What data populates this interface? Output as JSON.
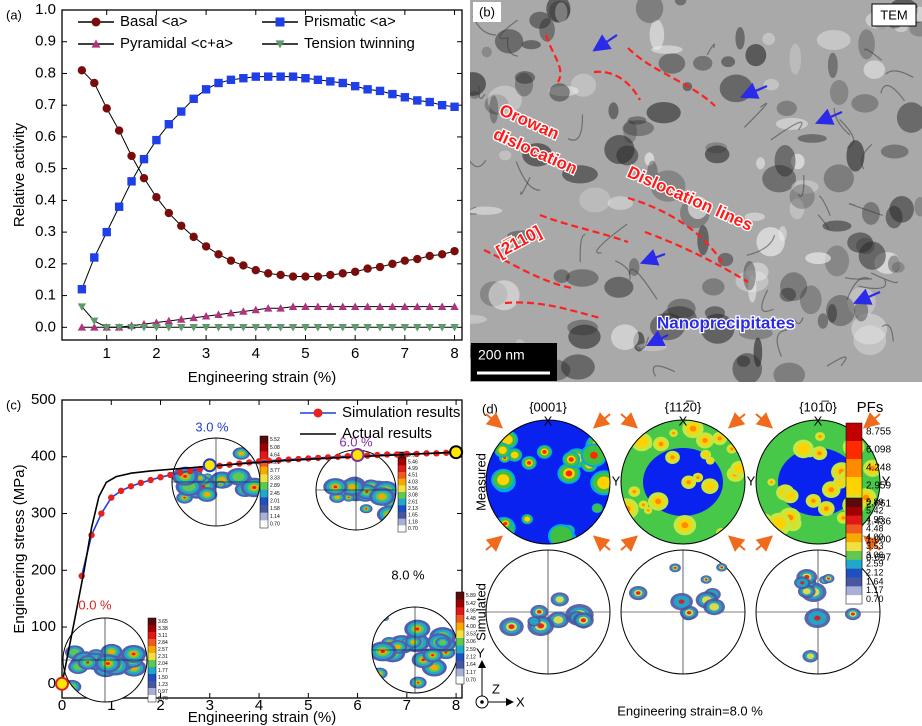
{
  "chart_data": [
    {
      "type": "line",
      "panel_label": "(a)",
      "x_label": "Engineering strain (%)",
      "y_label": "Relative activity",
      "x": [
        0.5,
        0.75,
        1,
        1.25,
        1.5,
        1.75,
        2,
        2.25,
        2.5,
        2.75,
        3,
        3.25,
        3.5,
        3.75,
        4,
        4.25,
        4.5,
        4.75,
        5,
        5.25,
        5.5,
        5.75,
        6,
        6.25,
        6.5,
        6.75,
        7,
        7.25,
        7.5,
        7.75,
        8
      ],
      "series": [
        {
          "name": "Basal <a>",
          "color": "#7a0c0c",
          "marker": "circle",
          "values": [
            0.81,
            0.77,
            0.69,
            0.62,
            0.54,
            0.47,
            0.41,
            0.36,
            0.32,
            0.285,
            0.255,
            0.23,
            0.21,
            0.195,
            0.18,
            0.17,
            0.165,
            0.16,
            0.16,
            0.16,
            0.165,
            0.17,
            0.175,
            0.185,
            0.19,
            0.2,
            0.21,
            0.215,
            0.225,
            0.23,
            0.24
          ]
        },
        {
          "name": "Prismatic <a>",
          "color": "#1f3fe8",
          "marker": "square",
          "values": [
            0.12,
            0.22,
            0.3,
            0.38,
            0.46,
            0.53,
            0.59,
            0.64,
            0.68,
            0.72,
            0.75,
            0.77,
            0.78,
            0.785,
            0.79,
            0.79,
            0.79,
            0.79,
            0.785,
            0.78,
            0.775,
            0.77,
            0.76,
            0.75,
            0.745,
            0.735,
            0.725,
            0.715,
            0.71,
            0.7,
            0.695
          ]
        },
        {
          "name": "Pyramidal <c+a>",
          "color": "#b0357f",
          "marker": "triangle-up",
          "values": [
            0,
            0,
            0,
            0,
            0.005,
            0.01,
            0.015,
            0.02,
            0.025,
            0.03,
            0.035,
            0.04,
            0.045,
            0.05,
            0.055,
            0.06,
            0.06,
            0.065,
            0.065,
            0.065,
            0.065,
            0.065,
            0.065,
            0.065,
            0.065,
            0.065,
            0.065,
            0.065,
            0.065,
            0.065,
            0.065
          ]
        },
        {
          "name": "Tension twinning",
          "color": "#5f9a6e",
          "marker": "triangle-down",
          "values": [
            0.065,
            0.02,
            0,
            0,
            0,
            0,
            0,
            0,
            0,
            0,
            0,
            0,
            0,
            0,
            0,
            0,
            0,
            0,
            0,
            0,
            0,
            0,
            0,
            0,
            0,
            0,
            0,
            0,
            0,
            0,
            0
          ]
        }
      ],
      "line_color": "#000000",
      "xlim": [
        0.1,
        8.15
      ],
      "ylim": [
        -0.04,
        1.0
      ],
      "xticks": [
        1,
        2,
        3,
        4,
        5,
        6,
        7,
        8
      ],
      "yticks": [
        {
          "value": 0,
          "label": "0.0"
        },
        0.1,
        0.2,
        0.3,
        0.4,
        0.5,
        0.6,
        0.7,
        0.8,
        0.9,
        {
          "value": 1,
          "label": "1.0"
        }
      ],
      "legend": "top"
    },
    {
      "type": "line",
      "panel_label": "(c)",
      "x_label": "Engineering strain (%)",
      "y_label": "Engineering stress (MPa)",
      "series": [
        {
          "name": "Simulation results",
          "color": "#1e3de0",
          "marker": "circle",
          "marker_color": "#e8201e",
          "x": [
            0.4,
            0.6,
            0.8,
            1,
            1.2,
            1.4,
            1.6,
            1.8,
            2,
            2.2,
            2.4,
            2.6,
            2.8,
            3,
            3.2,
            3.4,
            3.6,
            3.8,
            4,
            4.2,
            4.4,
            4.6,
            4.8,
            5,
            5.2,
            5.4,
            5.6,
            5.8,
            6,
            6.2,
            6.4,
            6.6,
            6.8,
            7,
            7.2,
            7.4,
            7.6,
            7.8,
            8
          ],
          "values": [
            190,
            262,
            300,
            328,
            340,
            348,
            354,
            359,
            364,
            368,
            372,
            375,
            378,
            381,
            384,
            386,
            388,
            390,
            392,
            393,
            394,
            395,
            396,
            397,
            398,
            399,
            400,
            401,
            402,
            402,
            403,
            404,
            404,
            405,
            405,
            406,
            406,
            407,
            407
          ]
        },
        {
          "name": "Actual results",
          "color": "#000000",
          "x": [
            0,
            0.25,
            0.45,
            0.6,
            0.75,
            0.9,
            1.1,
            1.4,
            1.8,
            2.5,
            3.5,
            4.5,
            5.5,
            6.5,
            7.5,
            8
          ],
          "values": [
            0,
            110,
            200,
            275,
            330,
            355,
            365,
            371,
            375,
            380,
            387,
            393,
            398,
            402,
            406,
            408
          ]
        }
      ],
      "xlim": [
        0,
        8.12
      ],
      "ylim": [
        -25,
        500
      ],
      "xticks": [
        0,
        1,
        2,
        3,
        4,
        5,
        6,
        7,
        8
      ],
      "yticks": [
        0,
        100,
        200,
        300,
        400,
        500
      ],
      "legend": "top right",
      "annotations": [
        {
          "x": 0,
          "y": 0,
          "label": "0.0 %",
          "color": "#e02020",
          "colorbar": [
            "3.65",
            "3.38",
            "3.11",
            "2.84",
            "2.57",
            "2.31",
            "2.04",
            "1.77",
            "1.50",
            "1.23",
            "0.97",
            "0.70"
          ]
        },
        {
          "x": 3,
          "y": 385,
          "label": "3.0 %",
          "color": "#2040d0",
          "colorbar": [
            "5.52",
            "5.08",
            "4.64",
            "4.21",
            "3.77",
            "3.33",
            "2.89",
            "2.45",
            "2.01",
            "1.58",
            "1.14",
            "0.70"
          ]
        },
        {
          "x": 6,
          "y": 403,
          "label": "6.0 %",
          "color": "#8030a0",
          "colorbar": [
            "5.94",
            "5.46",
            "4.99",
            "4.51",
            "4.03",
            "3.56",
            "3.08",
            "2.61",
            "2.13",
            "1.65",
            "1.18",
            "0.70"
          ]
        },
        {
          "x": 8,
          "y": 408,
          "label": "8.0 %",
          "color": "#000000",
          "colorbar": [
            "5.89",
            "5.42",
            "4.95",
            "4.48",
            "4.00",
            "3.53",
            "3.06",
            "2.59",
            "2.12",
            "1.64",
            "1.17",
            "0.70"
          ]
        }
      ]
    }
  ],
  "tem_image": {
    "panel_label": "(b)",
    "badge": "TEM",
    "orowan": "Orowan",
    "dislocation": "dislocation",
    "lines": "Dislocation lines",
    "direction": "[2̅110]",
    "precipitates": "Nanoprecipitates",
    "scale_bar": "200 nm"
  },
  "pole_figures": {
    "panel_label": "(d)",
    "planes": [
      "{0001}",
      "{112̅0}",
      "{101̅0}"
    ],
    "rows": [
      "Measured",
      "Simulated"
    ],
    "colorbar_title": "PFs",
    "axis_x": "X",
    "axis_y": "Y",
    "axis_z": "Z",
    "measured_colorbar": [
      "8.755",
      "6.098",
      "4.248",
      "2.959",
      "2.061",
      "1.436",
      "1.000",
      "0.697"
    ],
    "simulated_colorbar": [
      "5.89",
      "5.42",
      "4.95",
      "4.48",
      "4.00",
      "3.53",
      "3.06",
      "2.59",
      "2.12",
      "1.64",
      "1.17",
      "0.70"
    ],
    "footer": "Engineering strain=8.0 %"
  }
}
